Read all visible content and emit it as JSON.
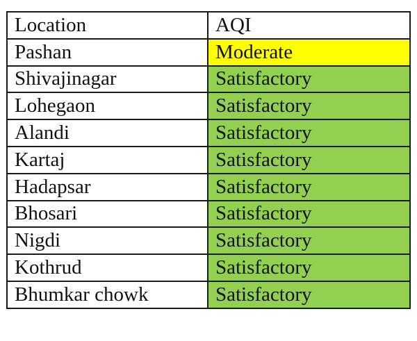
{
  "table": {
    "headers": [
      "Location",
      "AQI"
    ],
    "colors": {
      "Moderate": "#ffff00",
      "Satisfactory": "#92d050"
    },
    "rows": [
      {
        "location": "Pashan",
        "aqi": "Moderate"
      },
      {
        "location": "Shivajinagar",
        "aqi": "Satisfactory"
      },
      {
        "location": "Lohegaon",
        "aqi": "Satisfactory"
      },
      {
        "location": "Alandi",
        "aqi": "Satisfactory"
      },
      {
        "location": "Kartaj",
        "aqi": "Satisfactory"
      },
      {
        "location": "Hadapsar",
        "aqi": "Satisfactory"
      },
      {
        "location": "Bhosari",
        "aqi": "Satisfactory"
      },
      {
        "location": "Nigdi",
        "aqi": "Satisfactory"
      },
      {
        "location": "Kothrud",
        "aqi": "Satisfactory"
      },
      {
        "location": "Bhumkar chowk",
        "aqi": "Satisfactory"
      }
    ]
  }
}
